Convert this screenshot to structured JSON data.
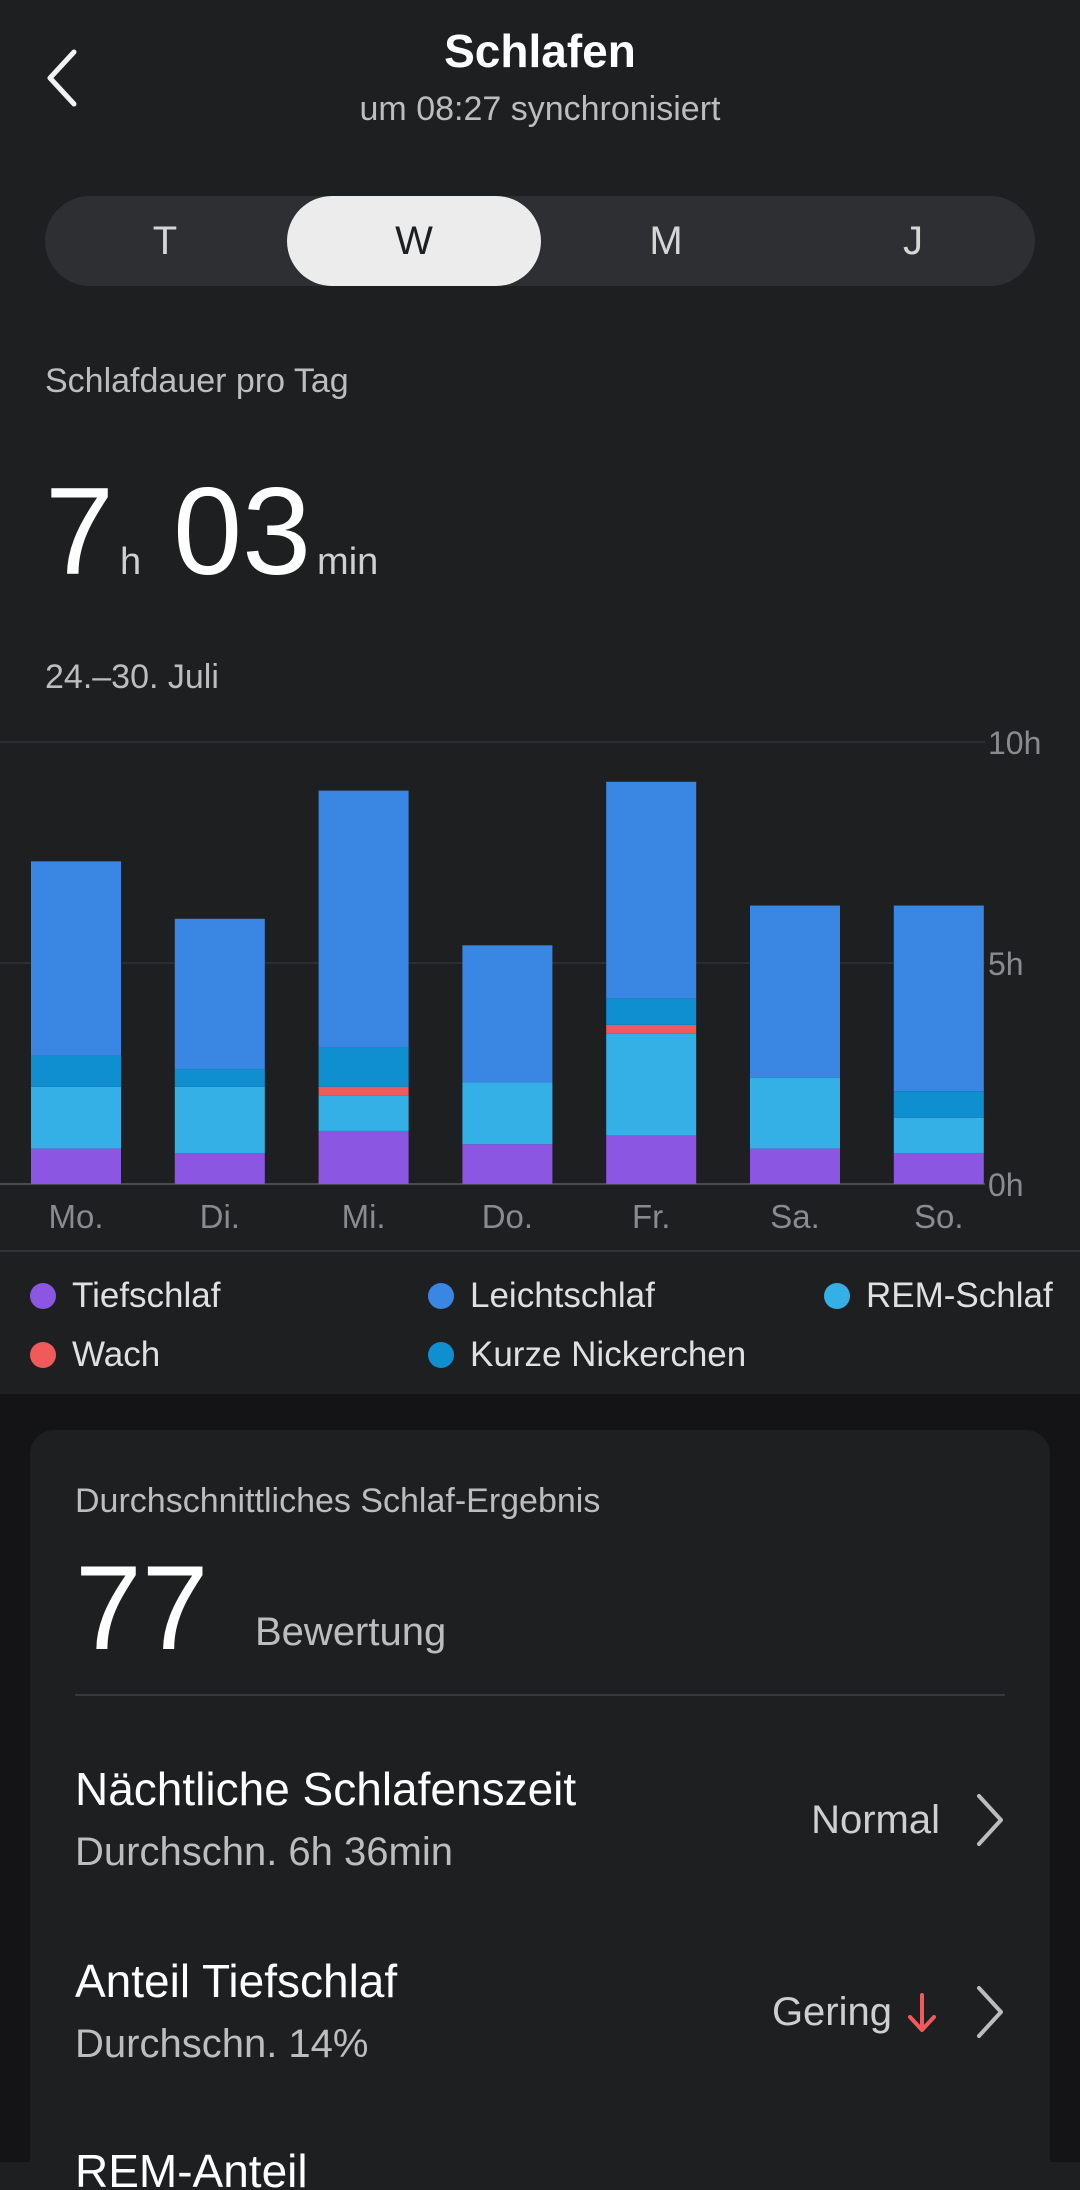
{
  "header": {
    "title": "Schlafen",
    "subtitle": "um 08:27 synchronisiert"
  },
  "tabs": [
    {
      "label": "T",
      "active": false
    },
    {
      "label": "W",
      "active": true
    },
    {
      "label": "M",
      "active": false
    },
    {
      "label": "J",
      "active": false
    }
  ],
  "summary": {
    "label": "Schlafdauer pro Tag",
    "hours": "7",
    "hours_unit": "h",
    "minutes": "03",
    "minutes_unit": "min",
    "range": "24.–30. Juli"
  },
  "colors": {
    "tiefschlaf": "#8a56e2",
    "leichtschlaf": "#3a86e3",
    "rem": "#34b0e6",
    "wach": "#f15a5a",
    "nickerchen": "#0f8fd0"
  },
  "chart_data": {
    "type": "bar",
    "stacked": true,
    "categories": [
      "Mo.",
      "Di.",
      "Mi.",
      "Do.",
      "Fr.",
      "Sa.",
      "So."
    ],
    "y_ticks": [
      "10h",
      "5h",
      "0h"
    ],
    "ylim": [
      0,
      10
    ],
    "series": [
      {
        "name": "Tiefschlaf",
        "values": [
          0.8,
          0.7,
          1.2,
          0.9,
          1.1,
          0.8,
          0.7
        ]
      },
      {
        "name": "REM-Schlaf",
        "values": [
          1.4,
          1.5,
          0.8,
          1.4,
          2.3,
          1.6,
          0.8
        ]
      },
      {
        "name": "Wach",
        "values": [
          0,
          0,
          0.2,
          0,
          0.2,
          0,
          0
        ]
      },
      {
        "name": "Kurze Nickerchen",
        "values": [
          0.7,
          0.4,
          0.9,
          0,
          0.6,
          0,
          0.6
        ]
      },
      {
        "name": "Leichtschlaf",
        "values": [
          4.4,
          3.4,
          5.8,
          3.1,
          4.9,
          3.9,
          4.2
        ]
      }
    ]
  },
  "legend": [
    {
      "label": "Tiefschlaf",
      "color": "#8a56e2"
    },
    {
      "label": "Leichtschlaf",
      "color": "#3a86e3"
    },
    {
      "label": "REM-Schlaf",
      "color": "#34b0e6"
    },
    {
      "label": "Wach",
      "color": "#f15a5a"
    },
    {
      "label": "Kurze Nickerchen",
      "color": "#0f8fd0"
    }
  ],
  "score": {
    "label": "Durchschnittliches Schlaf-Ergebnis",
    "value": "77",
    "unit": "Bewertung"
  },
  "rows": [
    {
      "title": "Nächtliche Schlafenszeit",
      "sub": "Durchschn. 6h 36min",
      "status": "Normal",
      "arrow": false
    },
    {
      "title": "Anteil Tiefschlaf",
      "sub": "Durchschn. 14%",
      "status": "Gering",
      "arrow": true
    }
  ],
  "cut_row": {
    "title": "REM-Anteil"
  }
}
